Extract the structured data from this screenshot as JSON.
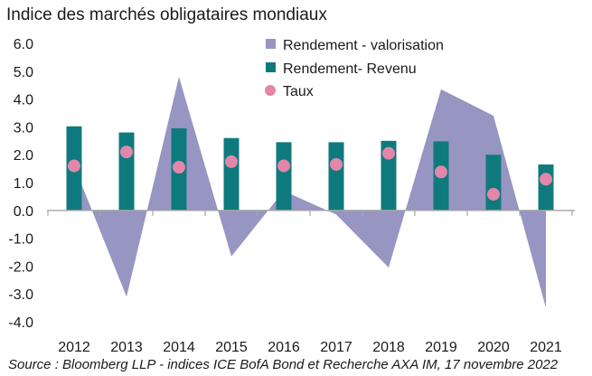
{
  "title": "Indice des marchés obligataires mondiaux",
  "source": "Source : Bloomberg LLP - indices ICE BofA Bond et Recherche AXA IM, 17 novembre 2022",
  "colors": {
    "valorisation": "#9795c2",
    "revenu": "#0f7a7d",
    "taux": "#e286aa",
    "axis": "#a6a6a6"
  },
  "chart_data": {
    "type": "bar",
    "categories": [
      "2012",
      "2013",
      "2014",
      "2015",
      "2016",
      "2017",
      "2018",
      "2019",
      "2020",
      "2021"
    ],
    "y_ticks": [
      "6.0",
      "5.0",
      "4.0",
      "3.0",
      "2.0",
      "1.0",
      "0.0",
      "-1.0",
      "-2.0",
      "-3.0",
      "-4.0"
    ],
    "ylim": [
      -4.0,
      6.0
    ],
    "grid": false,
    "legend_position": "top-right",
    "series": [
      {
        "name": "Rendement - valorisation",
        "kind": "area",
        "values": [
          1.6,
          -3.1,
          4.8,
          -1.65,
          0.7,
          -0.15,
          -2.05,
          4.35,
          3.4,
          -3.5
        ]
      },
      {
        "name": "Rendement- Revenu",
        "kind": "bar",
        "values": [
          3.02,
          2.8,
          2.95,
          2.6,
          2.45,
          2.45,
          2.5,
          2.48,
          2.0,
          1.65
        ]
      },
      {
        "name": "Taux",
        "kind": "dot",
        "values": [
          1.6,
          2.1,
          1.55,
          1.75,
          1.6,
          1.65,
          2.05,
          1.38,
          0.58,
          1.12
        ]
      }
    ]
  }
}
